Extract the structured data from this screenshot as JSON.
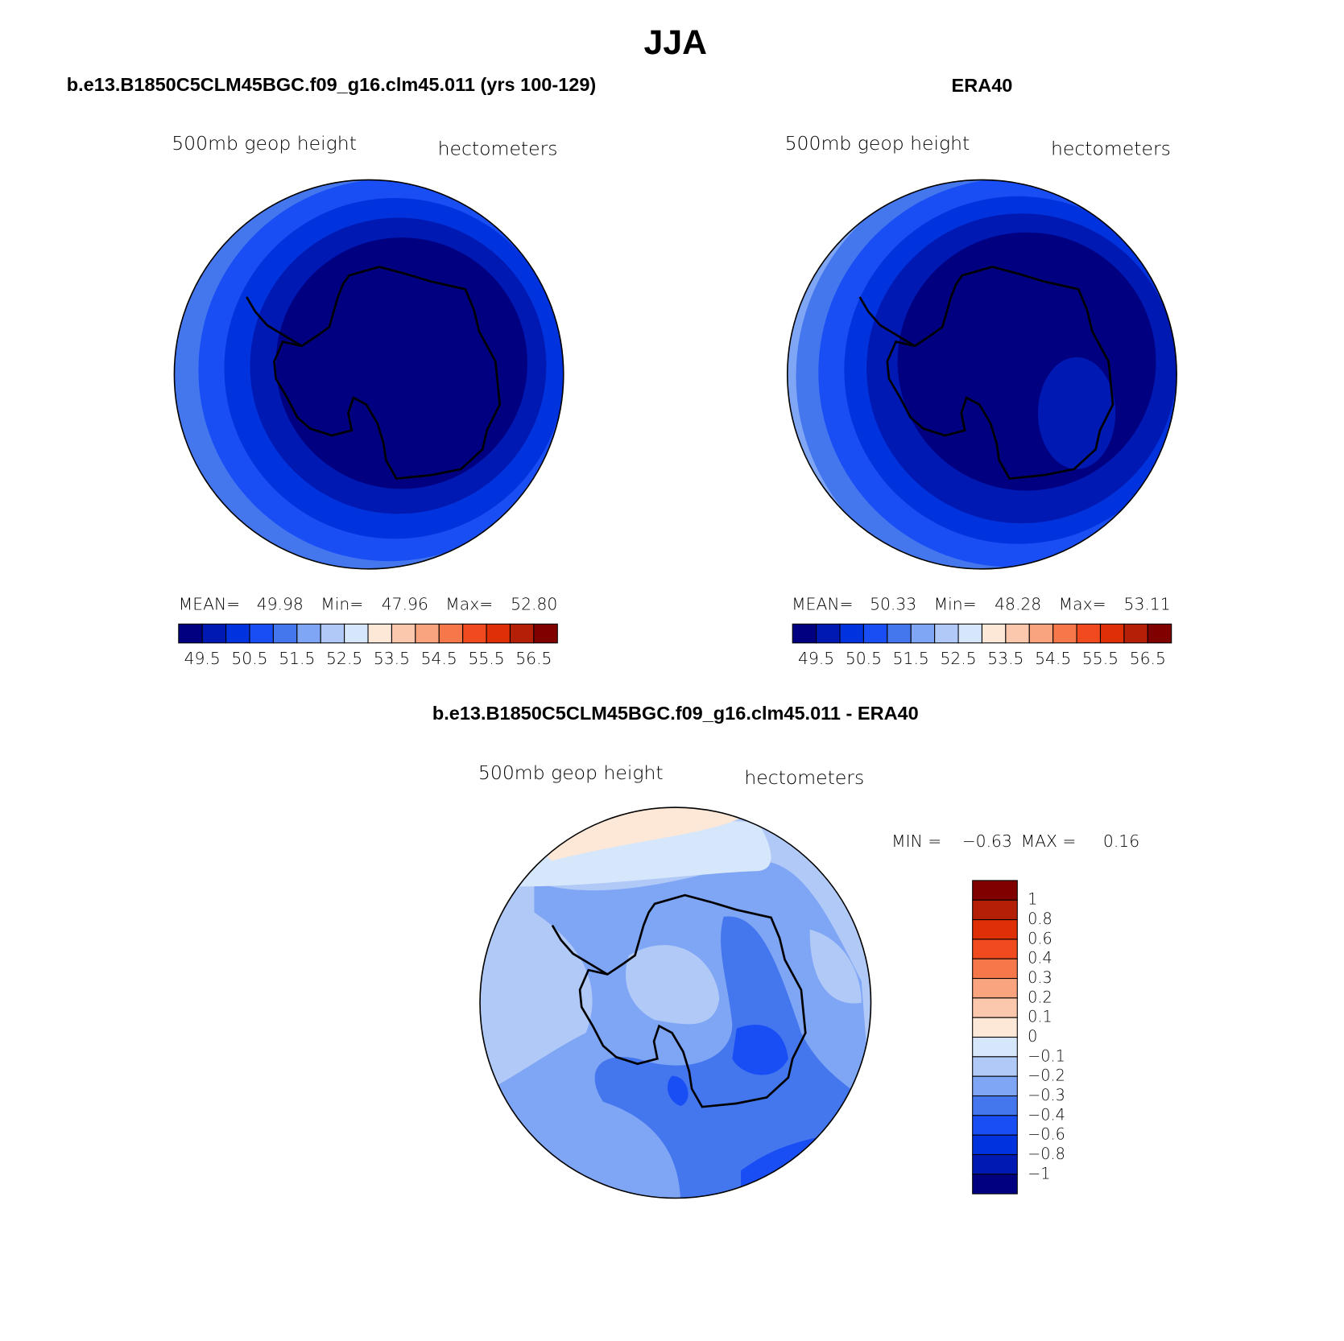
{
  "title": "JJA",
  "panels": [
    {
      "title": "b.e13.B1850C5CLM45BGC.f09_g16.clm45.011 (yrs 100-129)",
      "variable": "500mb geop height",
      "units": "hectometers",
      "stats": [
        {
          "label": "MEAN=",
          "value": "49.98"
        },
        {
          "label": "Min=",
          "value": "47.96"
        },
        {
          "label": "Max=",
          "value": "52.80"
        }
      ],
      "colorbar_labels": [
        "49.5",
        "50.5",
        "51.5",
        "52.5",
        "53.5",
        "54.5",
        "55.5",
        "56.5"
      ]
    },
    {
      "title": "ERA40",
      "variable": "500mb geop height",
      "units": "hectometers",
      "stats": [
        {
          "label": "MEAN=",
          "value": "50.33"
        },
        {
          "label": "Min=",
          "value": "48.28"
        },
        {
          "label": "Max=",
          "value": "53.11"
        }
      ],
      "colorbar_labels": [
        "49.5",
        "50.5",
        "51.5",
        "52.5",
        "53.5",
        "54.5",
        "55.5",
        "56.5"
      ]
    }
  ],
  "difference": {
    "title": "b.e13.B1850C5CLM45BGC.f09_g16.clm45.011 - ERA40",
    "variable": "500mb geop height",
    "units": "hectometers",
    "stats": [
      {
        "label": "MIN =",
        "value": "−0.63"
      },
      {
        "label": "MAX =",
        "value": "0.16"
      }
    ],
    "colorbar_labels": [
      "1",
      "0.8",
      "0.6",
      "0.4",
      "0.3",
      "0.2",
      "0.1",
      "0",
      "−0.1",
      "−0.2",
      "−0.3",
      "−0.4",
      "−0.6",
      "−0.8",
      "−1"
    ]
  },
  "colorbar_colors": [
    "#000080",
    "#0019b3",
    "#0033dd",
    "#1a4ef5",
    "#4477ee",
    "#7fa5f5",
    "#b0c9f7",
    "#d6e7fb",
    "#fde7d6",
    "#fbc7ad",
    "#f9a37f",
    "#f6784a",
    "#f14a1e",
    "#df2f06",
    "#b42007",
    "#800000"
  ]
}
